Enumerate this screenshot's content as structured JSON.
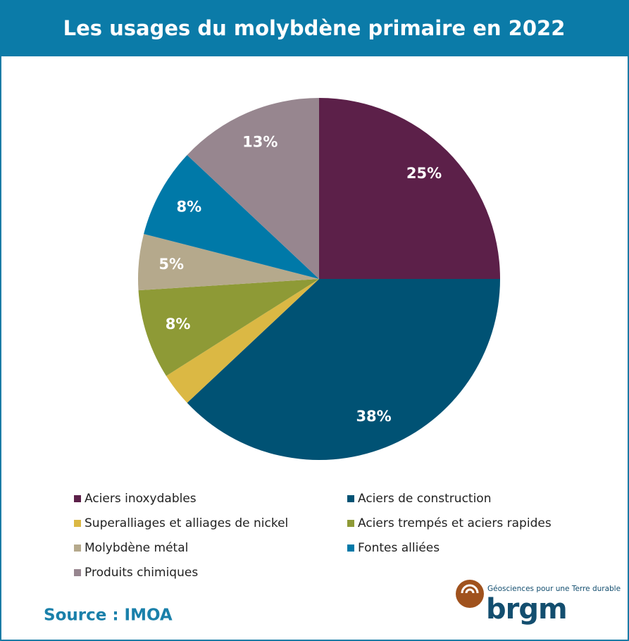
{
  "chart_data": {
    "type": "pie",
    "title": "Les usages du molybdène primaire en 2022",
    "categories": [
      "Aciers inoxydables",
      "Aciers de construction",
      "Superalliages et alliages de nickel",
      "Aciers trempés et aciers rapides",
      "Molybdène métal",
      "Fontes alliées",
      "Produits chimiques"
    ],
    "values": [
      25,
      38,
      3,
      8,
      5,
      8,
      13
    ],
    "value_labels": [
      "25%",
      "38%",
      null,
      "8%",
      "5%",
      "8%",
      "13%"
    ],
    "colors": [
      "#5c2049",
      "#005274",
      "#dbb844",
      "#8e9a36",
      "#b5a98c",
      "#0079a8",
      "#97868f"
    ],
    "legend": "bottom"
  },
  "source": "Source : IMOA",
  "logo": {
    "tagline": "Géosciences pour une Terre durable",
    "name": "brgm"
  }
}
